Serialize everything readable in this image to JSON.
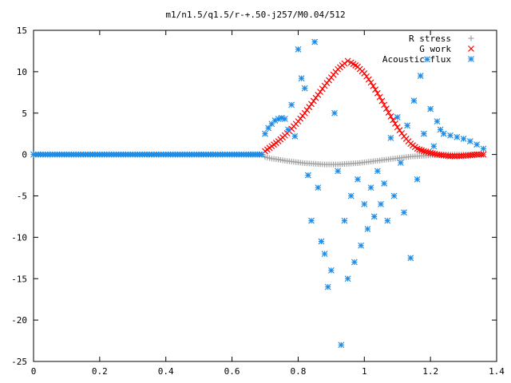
{
  "chart_data": {
    "type": "scatter",
    "title": "m1/n1.5/q1.5/r-+.50-j257/M0.04/512",
    "xlabel": "",
    "ylabel": "",
    "xlim": [
      0,
      1.4
    ],
    "ylim": [
      -25,
      15
    ],
    "grid": false,
    "legend_position": "top-right",
    "x_ticks": [
      "0",
      "0.2",
      "0.4",
      "0.6",
      "0.8",
      "1",
      "1.2",
      "1.4"
    ],
    "y_ticks": [
      "15",
      "10",
      "5",
      "0",
      "-5",
      "-10",
      "-15",
      "-20",
      "-25"
    ],
    "series": [
      {
        "name": "R stress",
        "marker": "plus",
        "color": "#a0a0a0",
        "points": [
          [
            0.69,
            0.0
          ],
          [
            0.7,
            -0.3
          ],
          [
            0.72,
            -0.5
          ],
          [
            0.74,
            -0.6
          ],
          [
            0.76,
            -0.75
          ],
          [
            0.78,
            -0.85
          ],
          [
            0.8,
            -0.95
          ],
          [
            0.82,
            -1.05
          ],
          [
            0.84,
            -1.1
          ],
          [
            0.86,
            -1.15
          ],
          [
            0.88,
            -1.2
          ],
          [
            0.9,
            -1.2
          ],
          [
            0.92,
            -1.2
          ],
          [
            0.94,
            -1.15
          ],
          [
            0.96,
            -1.1
          ],
          [
            0.98,
            -1.05
          ],
          [
            1.0,
            -0.95
          ],
          [
            1.02,
            -0.85
          ],
          [
            1.04,
            -0.75
          ],
          [
            1.06,
            -0.65
          ],
          [
            1.08,
            -0.55
          ],
          [
            1.1,
            -0.45
          ],
          [
            1.12,
            -0.35
          ],
          [
            1.14,
            -0.25
          ],
          [
            1.16,
            -0.2
          ],
          [
            1.18,
            -0.15
          ],
          [
            1.2,
            -0.1
          ],
          [
            1.22,
            -0.05
          ],
          [
            1.24,
            0.0
          ],
          [
            1.26,
            0.0
          ],
          [
            1.3,
            0.0
          ],
          [
            1.36,
            0.0
          ]
        ]
      },
      {
        "name": "G work",
        "marker": "cross",
        "color": "#ff0000",
        "points": [
          [
            0.69,
            0.0
          ],
          [
            0.7,
            0.4
          ],
          [
            0.72,
            1.0
          ],
          [
            0.74,
            1.6
          ],
          [
            0.76,
            2.3
          ],
          [
            0.78,
            3.1
          ],
          [
            0.8,
            4.0
          ],
          [
            0.82,
            5.0
          ],
          [
            0.84,
            6.1
          ],
          [
            0.86,
            7.2
          ],
          [
            0.88,
            8.3
          ],
          [
            0.9,
            9.3
          ],
          [
            0.92,
            10.3
          ],
          [
            0.94,
            11.0
          ],
          [
            0.95,
            11.3
          ],
          [
            0.96,
            11.1
          ],
          [
            0.98,
            10.6
          ],
          [
            1.0,
            9.8
          ],
          [
            1.02,
            8.7
          ],
          [
            1.04,
            7.4
          ],
          [
            1.06,
            6.0
          ],
          [
            1.08,
            4.6
          ],
          [
            1.1,
            3.3
          ],
          [
            1.12,
            2.2
          ],
          [
            1.14,
            1.3
          ],
          [
            1.16,
            0.7
          ],
          [
            1.18,
            0.4
          ],
          [
            1.2,
            0.2
          ],
          [
            1.22,
            0.0
          ],
          [
            1.24,
            -0.1
          ],
          [
            1.26,
            -0.2
          ],
          [
            1.28,
            -0.2
          ],
          [
            1.3,
            -0.15
          ],
          [
            1.32,
            -0.1
          ],
          [
            1.34,
            0.0
          ],
          [
            1.36,
            0.0
          ]
        ]
      },
      {
        "name": "Acoustic flux",
        "marker": "star",
        "color": "#1e8ce6",
        "points": [
          [
            0.0,
            0.0
          ],
          [
            0.05,
            0.0
          ],
          [
            0.1,
            0.0
          ],
          [
            0.15,
            0.0
          ],
          [
            0.2,
            0.0
          ],
          [
            0.25,
            0.0
          ],
          [
            0.3,
            0.0
          ],
          [
            0.35,
            0.0
          ],
          [
            0.4,
            0.0
          ],
          [
            0.45,
            0.0
          ],
          [
            0.5,
            0.0
          ],
          [
            0.55,
            0.0
          ],
          [
            0.6,
            0.0
          ],
          [
            0.65,
            0.0
          ],
          [
            0.69,
            0.0
          ],
          [
            0.7,
            2.5
          ],
          [
            0.71,
            3.2
          ],
          [
            0.72,
            3.7
          ],
          [
            0.73,
            4.1
          ],
          [
            0.74,
            4.3
          ],
          [
            0.75,
            4.4
          ],
          [
            0.76,
            4.3
          ],
          [
            0.77,
            3.0
          ],
          [
            0.78,
            6.0
          ],
          [
            0.79,
            2.2
          ],
          [
            0.8,
            12.7
          ],
          [
            0.81,
            9.2
          ],
          [
            0.82,
            8.0
          ],
          [
            0.83,
            -2.5
          ],
          [
            0.84,
            -8.0
          ],
          [
            0.85,
            13.6
          ],
          [
            0.86,
            -4.0
          ],
          [
            0.87,
            -10.5
          ],
          [
            0.88,
            -12.0
          ],
          [
            0.89,
            -16.0
          ],
          [
            0.9,
            -14.0
          ],
          [
            0.91,
            5.0
          ],
          [
            0.92,
            -2.0
          ],
          [
            0.93,
            -23.0
          ],
          [
            0.94,
            -8.0
          ],
          [
            0.95,
            -15.0
          ],
          [
            0.96,
            -5.0
          ],
          [
            0.97,
            -13.0
          ],
          [
            0.98,
            -3.0
          ],
          [
            0.99,
            -11.0
          ],
          [
            1.0,
            -6.0
          ],
          [
            1.01,
            -9.0
          ],
          [
            1.02,
            -4.0
          ],
          [
            1.03,
            -7.5
          ],
          [
            1.04,
            -2.0
          ],
          [
            1.05,
            -6.0
          ],
          [
            1.06,
            -3.5
          ],
          [
            1.07,
            -8.0
          ],
          [
            1.08,
            2.0
          ],
          [
            1.09,
            -5.0
          ],
          [
            1.1,
            4.5
          ],
          [
            1.11,
            -1.0
          ],
          [
            1.12,
            -7.0
          ],
          [
            1.13,
            3.5
          ],
          [
            1.14,
            -12.5
          ],
          [
            1.15,
            6.5
          ],
          [
            1.16,
            -3.0
          ],
          [
            1.17,
            9.5
          ],
          [
            1.18,
            2.5
          ],
          [
            1.19,
            11.5
          ],
          [
            1.2,
            5.5
          ],
          [
            1.21,
            1.0
          ],
          [
            1.22,
            4.0
          ],
          [
            1.23,
            3.0
          ],
          [
            1.24,
            2.5
          ],
          [
            1.26,
            2.3
          ],
          [
            1.28,
            2.1
          ],
          [
            1.3,
            1.9
          ],
          [
            1.32,
            1.6
          ],
          [
            1.34,
            1.2
          ],
          [
            1.36,
            0.7
          ]
        ]
      }
    ]
  }
}
